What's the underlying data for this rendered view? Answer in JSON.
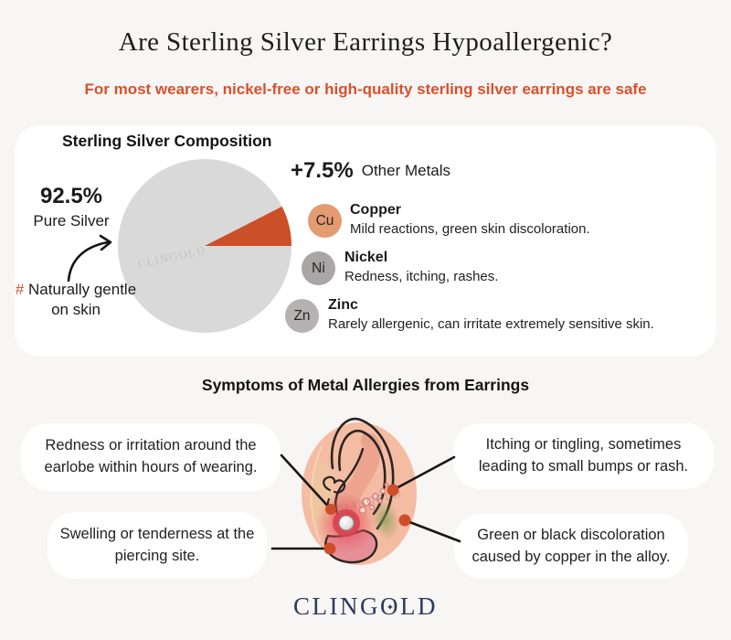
{
  "page": {
    "title": "Are Sterling Silver Earrings Hypoallergenic?",
    "subtitle": "For most wearers, nickel-free or high-quality sterling silver earrings are safe"
  },
  "colors": {
    "background": "#f7f6f4",
    "accent_orange": "#d8512d",
    "pie_slice_other": "#cb5028",
    "pie_slice_silver": "#d9d9d9",
    "copper_badge": "#e39b72",
    "nickel_badge": "#a8a6a6",
    "zinc_badge": "#b4b2b2",
    "marker_dot": "#ce4d2a",
    "logo_navy": "#2c3b5c"
  },
  "composition": {
    "heading": "Sterling Silver Composition",
    "silver_pct": "92.5%",
    "silver_label": "Pure Silver",
    "note_hash": "#",
    "note_text": "Naturally gentle on skin",
    "other_pct": "+7.5%",
    "other_label": "Other Metals",
    "watermark": "CLINGOLD",
    "legend": [
      {
        "symbol": "Cu",
        "name": "Copper",
        "desc": "Mild reactions, green skin discoloration.",
        "color": "#e39b72"
      },
      {
        "symbol": "Ni",
        "name": "Nickel",
        "desc": "Redness, itching, rashes.",
        "color": "#a8a6a6"
      },
      {
        "symbol": "Zn",
        "name": "Zinc",
        "desc": "Rarely allergenic, can irritate extremely sensitive skin.",
        "color": "#b4b2b2"
      }
    ]
  },
  "symptoms": {
    "heading": "Symptoms of Metal Allergies from Earrings",
    "bubbles": [
      {
        "text": "Redness or irritation around the earlobe within hours of wearing."
      },
      {
        "text": "Itching or tingling, sometimes leading to small bumps or rash."
      },
      {
        "text": "Swelling or tenderness at the piercing site."
      },
      {
        "text": "Green or black discoloration caused by copper in the alloy."
      }
    ],
    "watermark": "CLINGOLD"
  },
  "footer": {
    "logo_pre": "CLING",
    "logo_o": "O",
    "logo_post": "LD",
    "logo_star": "✦"
  },
  "chart_data": {
    "type": "pie",
    "title": "Sterling Silver Composition",
    "labels": [
      "Pure Silver",
      "Other Metals"
    ],
    "values": [
      92.5,
      7.5
    ],
    "colors": [
      "#d9d9d9",
      "#cb5028"
    ],
    "legend_position": "right",
    "annotations": [
      "92.5% Pure Silver",
      "+7.5% Other Metals (Copper, Nickel, Zinc)",
      "# Naturally gentle on skin"
    ]
  }
}
